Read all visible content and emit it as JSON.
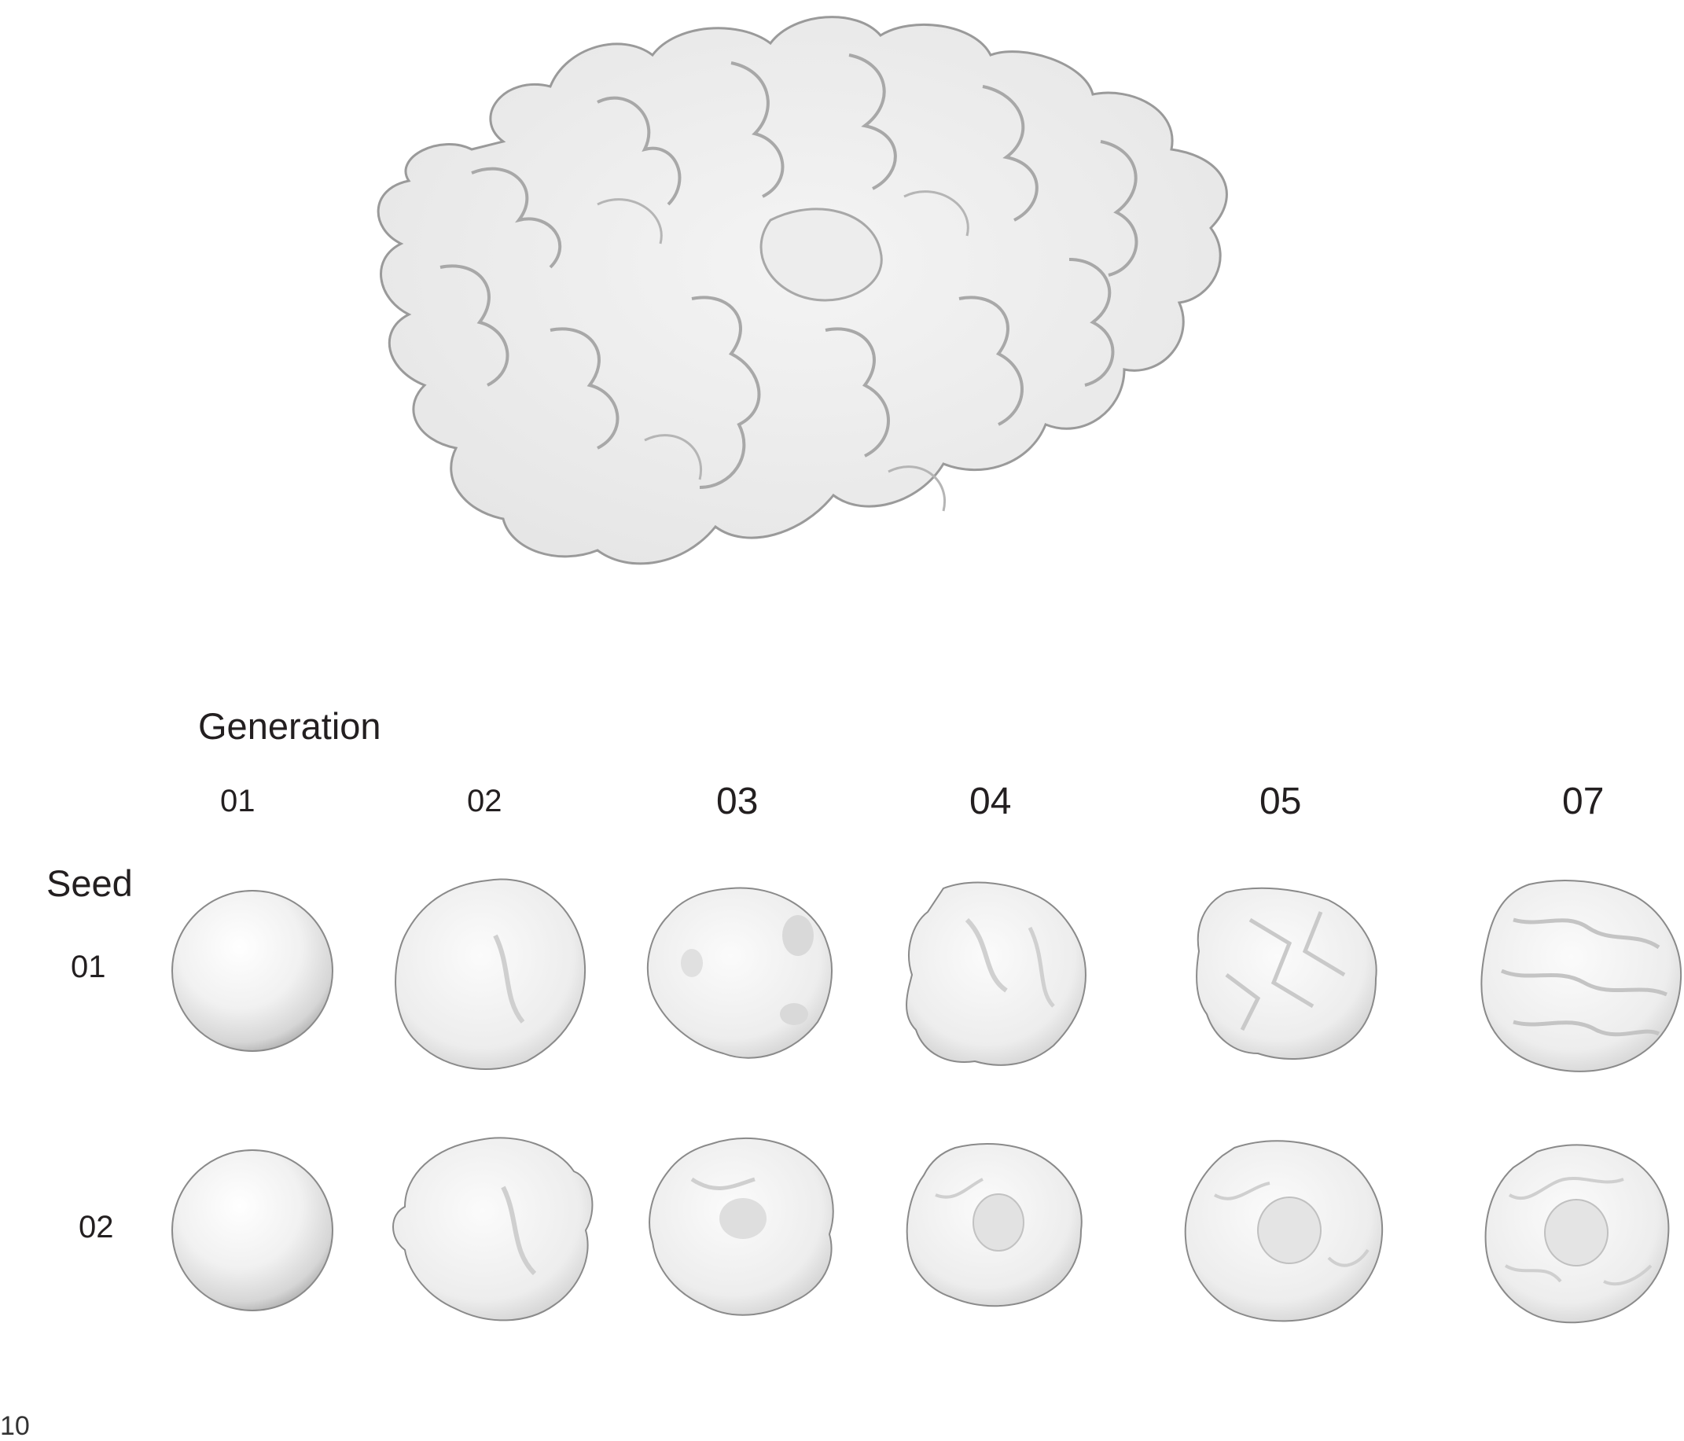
{
  "section_title": "Generation",
  "seed_title": "Seed",
  "generation_labels": [
    "01",
    "02",
    "03",
    "04",
    "05",
    "07"
  ],
  "seed_labels": [
    "01",
    "02"
  ],
  "page_number": "10",
  "colors": {
    "text": "#231f20",
    "form_fill": "#f2f2f2",
    "form_edge": "#8a8a8a",
    "form_shadow": "#c4c4c4"
  }
}
